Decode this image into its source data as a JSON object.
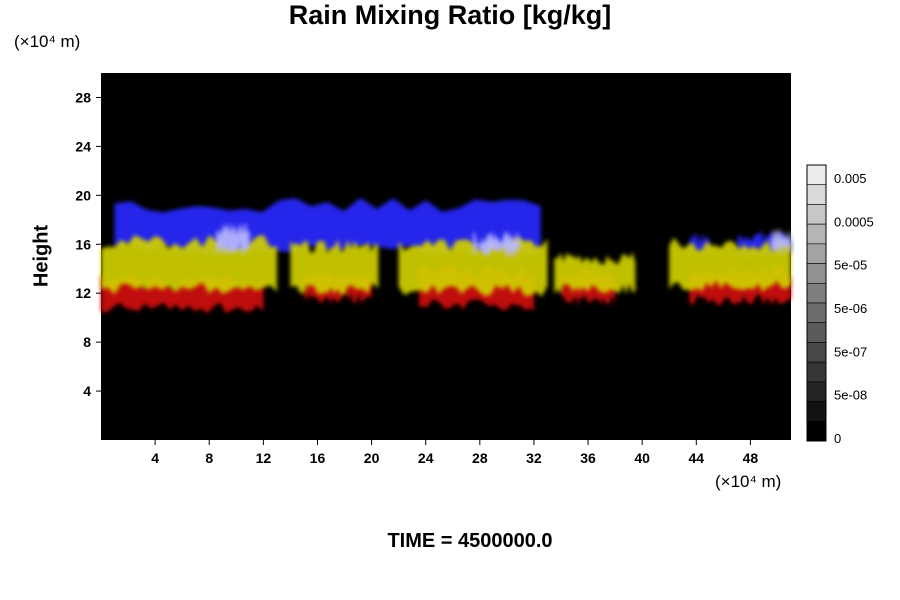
{
  "chart_data": {
    "type": "heatmap",
    "title": "Rain Mixing Ratio [kg/kg]",
    "ylabel": "Height",
    "xlabel": "",
    "x_unit": "(×10⁴ m)",
    "y_unit": "(×10⁴ m)",
    "x_ticks": [
      4,
      8,
      12,
      16,
      20,
      24,
      28,
      32,
      36,
      40,
      44,
      48
    ],
    "y_ticks": [
      4,
      8,
      12,
      16,
      20,
      24,
      28
    ],
    "xlim": [
      0,
      51
    ],
    "ylim": [
      0,
      30
    ],
    "background": "#000000",
    "layers": [
      {
        "color": "#2828ff",
        "band": [
          16,
          19
        ]
      },
      {
        "color": "#d0d000",
        "band": [
          12.5,
          16
        ]
      },
      {
        "color": "#d01010",
        "band": [
          11,
          13
        ]
      }
    ],
    "colorbar": {
      "labels": [
        "0.005",
        "0.0005",
        "5e-05",
        "5e-06",
        "5e-07",
        "5e-08",
        "0"
      ],
      "steps": 14
    },
    "footer": "TIME = 4500000.0"
  }
}
